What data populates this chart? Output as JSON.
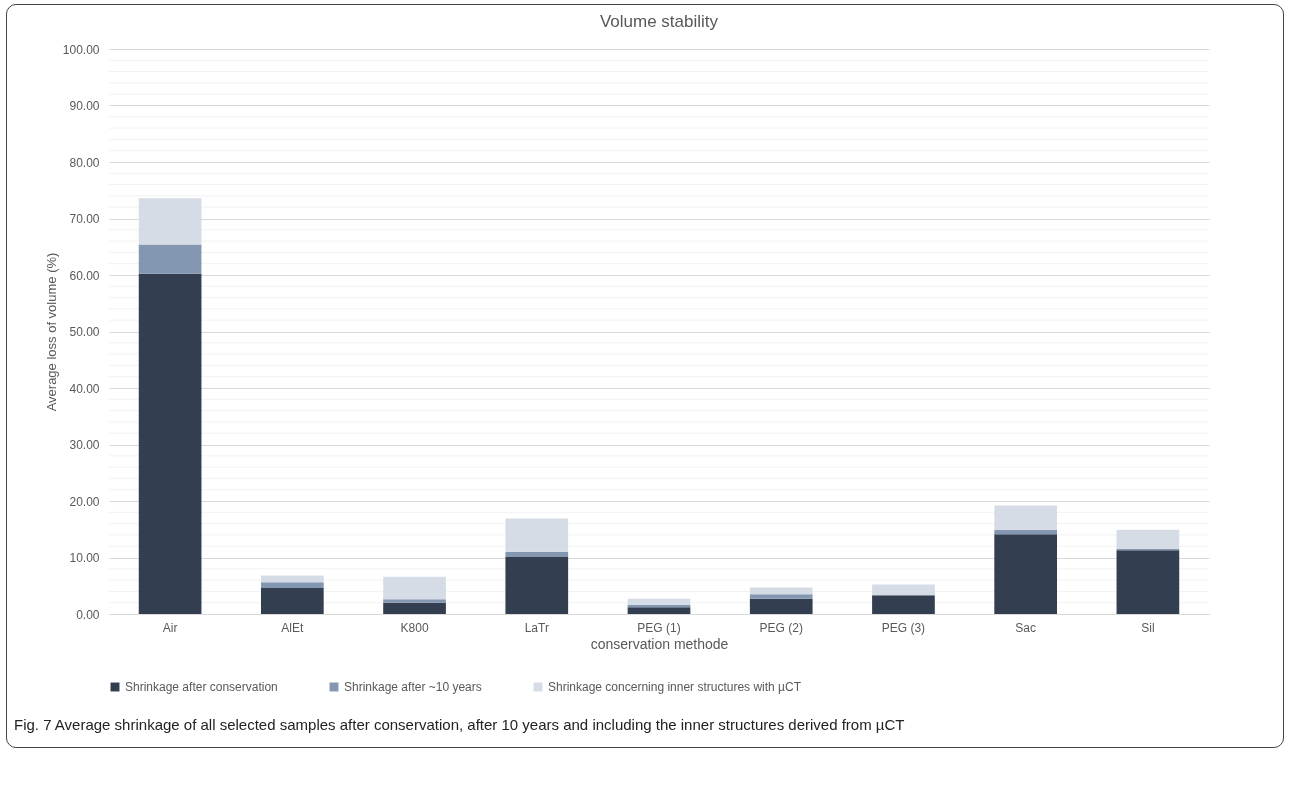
{
  "chart_data": {
    "type": "bar",
    "title": "Volume stability",
    "xlabel": "conservation methode",
    "ylabel": "Average loss of volume (%)",
    "categories": [
      "Air",
      "AlEt",
      "K800",
      "LaTr",
      "PEG (1)",
      "PEG (2)",
      "PEG (3)",
      "Sac",
      "Sil"
    ],
    "stacked": true,
    "series": [
      {
        "name": "Shrinkage after conservation",
        "color": "#333f50",
        "values": [
          60.2,
          4.6,
          2.0,
          10.1,
          1.2,
          2.7,
          3.3,
          14.1,
          11.3
        ]
      },
      {
        "name": "Shrinkage after ~10 years",
        "color": "#8497b0",
        "values": [
          5.2,
          1.0,
          0.6,
          0.9,
          0.4,
          0.8,
          0,
          0.8,
          0.2
        ]
      },
      {
        "name": "Shrinkage concerning inner structures with µCT",
        "color": "#d6dce5",
        "values": [
          8.2,
          1.2,
          4.0,
          5.9,
          1.1,
          1.2,
          1.9,
          4.3,
          3.4
        ]
      }
    ],
    "ylim": [
      0,
      100
    ],
    "yticks": [
      {
        "value": 0,
        "label": "0.00"
      },
      {
        "value": 2,
        "label": null
      },
      {
        "value": 4,
        "label": null
      },
      {
        "value": 6,
        "label": null
      },
      {
        "value": 8,
        "label": null
      },
      {
        "value": 10,
        "label": "10.00"
      },
      {
        "value": 12,
        "label": null
      },
      {
        "value": 14,
        "label": null
      },
      {
        "value": 16,
        "label": null
      },
      {
        "value": 18,
        "label": null
      },
      {
        "value": 20,
        "label": "20.00"
      },
      {
        "value": 22,
        "label": null
      },
      {
        "value": 24,
        "label": null
      },
      {
        "value": 26,
        "label": null
      },
      {
        "value": 28,
        "label": null
      },
      {
        "value": 30,
        "label": "30.00"
      },
      {
        "value": 32,
        "label": null
      },
      {
        "value": 34,
        "label": null
      },
      {
        "value": 36,
        "label": null
      },
      {
        "value": 38,
        "label": null
      },
      {
        "value": 40,
        "label": "40.00"
      },
      {
        "value": 42,
        "label": null
      },
      {
        "value": 44,
        "label": null
      },
      {
        "value": 46,
        "label": null
      },
      {
        "value": 48,
        "label": null
      },
      {
        "value": 50,
        "label": "50.00"
      },
      {
        "value": 52,
        "label": null
      },
      {
        "value": 54,
        "label": null
      },
      {
        "value": 56,
        "label": null
      },
      {
        "value": 58,
        "label": null
      },
      {
        "value": 60,
        "label": "60.00"
      },
      {
        "value": 62,
        "label": null
      },
      {
        "value": 64,
        "label": null
      },
      {
        "value": 66,
        "label": null
      },
      {
        "value": 68,
        "label": null
      },
      {
        "value": 70,
        "label": "70.00"
      },
      {
        "value": 72,
        "label": null
      },
      {
        "value": 74,
        "label": null
      },
      {
        "value": 76,
        "label": null
      },
      {
        "value": 78,
        "label": null
      },
      {
        "value": 80,
        "label": "80.00"
      },
      {
        "value": 82,
        "label": null
      },
      {
        "value": 84,
        "label": null
      },
      {
        "value": 86,
        "label": null
      },
      {
        "value": 88,
        "label": null
      },
      {
        "value": 90,
        "label": "90.00"
      },
      {
        "value": 92,
        "label": null
      },
      {
        "value": 94,
        "label": null
      },
      {
        "value": 96,
        "label": null
      },
      {
        "value": 98,
        "label": null
      },
      {
        "value": 100,
        "label": "100.00"
      }
    ],
    "grid": "y",
    "legend": "bottom",
    "annotations": [
      "Fig. 7  Average shrinkage of all selected samples after conservation, after 10 years and including the inner structures derived from µCT"
    ]
  }
}
